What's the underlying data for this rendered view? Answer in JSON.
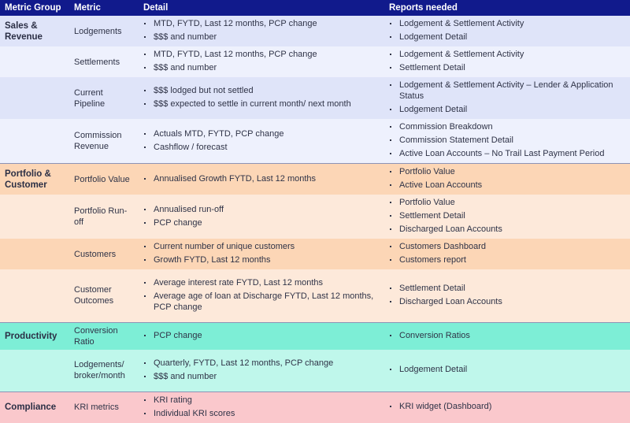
{
  "header": {
    "group": "Metric Group",
    "metric": "Metric",
    "detail": "Detail",
    "reports": "Reports needed"
  },
  "colors": {
    "header": "#111a8c",
    "sales_dark": "#dfe4f9",
    "sales_light": "#eef1fd",
    "portfolio_dark": "#fcd6b6",
    "portfolio_light": "#fde9da",
    "productivity_dark": "#7deed6",
    "productivity_light": "#bff7eb",
    "compliance": "#fac8cc"
  },
  "rows": [
    {
      "group": "Sales & Revenue",
      "metric": "Lodgements",
      "detail": [
        "MTD, FYTD, Last 12 months, PCP change",
        "$$$ and number"
      ],
      "reports": [
        "Lodgement & Settlement Activity",
        "Lodgement Detail"
      ],
      "shade": "sales_dark",
      "h": 39
    },
    {
      "group": "",
      "metric": "Settlements",
      "detail": [
        "MTD, FYTD, Last 12 months, PCP change",
        "$$$ and number"
      ],
      "reports": [
        "Lodgement & Settlement Activity",
        "Settlement Detail"
      ],
      "shade": "sales_light",
      "h": 38
    },
    {
      "group": "",
      "metric": "Current Pipeline",
      "detail": [
        "$$$ lodged but not settled",
        "$$$ expected to settle in current month/ next month"
      ],
      "reports": [
        "Lodgement & Settlement Activity – Lender & Application Status",
        "Lodgement Detail"
      ],
      "shade": "sales_dark",
      "h": 51
    },
    {
      "group": "",
      "metric": "Commission Revenue",
      "detail": [
        "Actuals MTD, FYTD, PCP change",
        "Cashflow / forecast"
      ],
      "reports": [
        "Commission Breakdown",
        "Commission Statement Detail",
        "Active Loan Accounts – No Trail Last Payment Period"
      ],
      "shade": "sales_light",
      "h": 54
    },
    {
      "group": "Portfolio & Customer",
      "metric": "Portfolio Value",
      "detail": [
        "Annualised Growth FYTD, Last 12 months"
      ],
      "reports": [
        "Portfolio Value",
        "Active Loan Accounts"
      ],
      "shade": "portfolio_dark",
      "h": 39,
      "sep": true
    },
    {
      "group": "",
      "metric": "Portfolio Run-off",
      "detail": [
        "Annualised run-off",
        "PCP change"
      ],
      "reports": [
        "Portfolio Value",
        "Settlement Detail",
        "Discharged Loan Accounts"
      ],
      "shade": "portfolio_light",
      "h": 55
    },
    {
      "group": "",
      "metric": "Customers",
      "detail": [
        "Current number of unique customers",
        "Growth FYTD, Last 12 months"
      ],
      "reports": [
        "Customers Dashboard",
        "Customers report"
      ],
      "shade": "portfolio_dark",
      "h": 37
    },
    {
      "group": "",
      "metric": "Customer Outcomes",
      "detail": [
        "Average interest rate FYTD, Last 12 months",
        "Average age of loan at Discharge FYTD, Last 12 months, PCP change"
      ],
      "reports": [
        "Settlement Detail",
        "Discharged Loan Accounts"
      ],
      "shade": "portfolio_light",
      "h": 67
    },
    {
      "group": "Productivity",
      "metric": "Conversion Ratio",
      "detail": [
        "PCP change"
      ],
      "reports": [
        "Conversion Ratios"
      ],
      "shade": "productivity_dark",
      "h": 35,
      "sep": true,
      "mid": true
    },
    {
      "group": "",
      "metric": "Lodgements/ broker/month",
      "detail": [
        "Quarterly, FYTD, Last 12 months, PCP change",
        "$$$ and number"
      ],
      "reports": [
        "Lodgement Detail"
      ],
      "shade": "productivity_light",
      "h": 53
    },
    {
      "group": "Compliance",
      "metric": "KRI metrics",
      "detail": [
        "KRI rating",
        "Individual KRI scores"
      ],
      "reports": [
        "KRI widget (Dashboard)"
      ],
      "shade": "compliance",
      "h": 37,
      "sep": true,
      "mid": true
    }
  ]
}
